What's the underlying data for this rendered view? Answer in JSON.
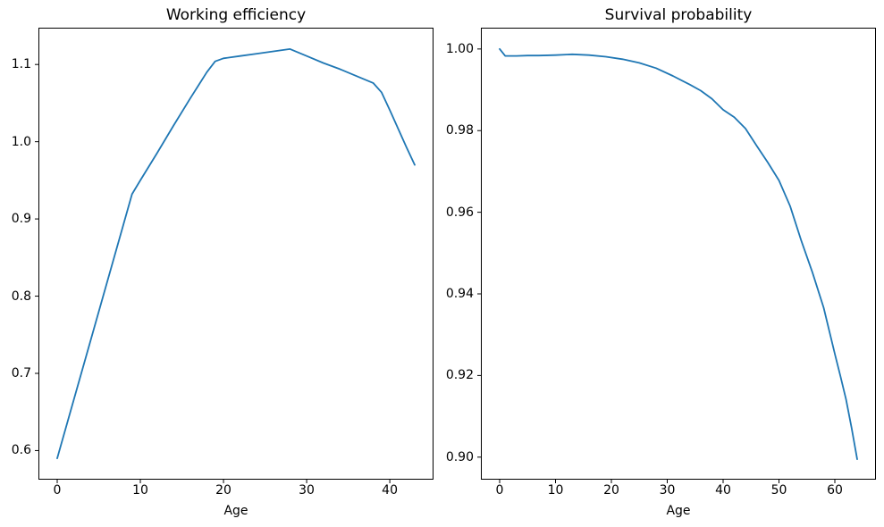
{
  "figure": {
    "background": "#ffffff",
    "text_color": "#000000",
    "spine_color": "#000000"
  },
  "chart_data": [
    {
      "type": "line",
      "title": "Working efficiency",
      "xlabel": "Age",
      "ylabel": "",
      "line_color": "#1f77b4",
      "grid": false,
      "legend": null,
      "xlim": [
        -2.15,
        45.15
      ],
      "ylim": [
        0.5635,
        1.1465
      ],
      "xticks": [
        0,
        10,
        20,
        30,
        40
      ],
      "xtick_labels": [
        "0",
        "10",
        "20",
        "30",
        "40"
      ],
      "yticks": [
        0.6,
        0.7,
        0.8,
        0.9,
        1.0,
        1.1
      ],
      "ytick_labels": [
        "0.6",
        "0.7",
        "0.8",
        "0.9",
        "1.0",
        "1.1"
      ],
      "x": [
        0,
        2,
        4,
        6,
        8,
        9,
        10,
        12,
        14,
        16,
        17,
        18,
        19,
        20,
        22,
        24,
        26,
        28,
        30,
        32,
        34,
        36,
        38,
        39,
        40,
        41,
        42,
        43
      ],
      "y": [
        0.59,
        0.666,
        0.742,
        0.818,
        0.894,
        0.932,
        0.95,
        0.985,
        1.021,
        1.056,
        1.073,
        1.09,
        1.104,
        1.108,
        1.111,
        1.114,
        1.117,
        1.12,
        1.111,
        1.102,
        1.094,
        1.085,
        1.076,
        1.064,
        1.041,
        1.017,
        0.993,
        0.97
      ]
    },
    {
      "type": "line",
      "title": "Survival probability",
      "xlabel": "Age",
      "ylabel": "",
      "line_color": "#1f77b4",
      "grid": false,
      "legend": null,
      "xlim": [
        -3.2,
        67.2
      ],
      "ylim": [
        0.8947,
        1.005
      ],
      "xticks": [
        0,
        10,
        20,
        30,
        40,
        50,
        60
      ],
      "xtick_labels": [
        "0",
        "10",
        "20",
        "30",
        "40",
        "50",
        "60"
      ],
      "yticks": [
        0.9,
        0.92,
        0.94,
        0.96,
        0.98,
        1.0
      ],
      "ytick_labels": [
        "0.90",
        "0.92",
        "0.94",
        "0.96",
        "0.98",
        "1.00"
      ],
      "x": [
        0,
        1,
        3,
        5,
        7,
        10,
        13,
        16,
        19,
        22,
        25,
        28,
        31,
        34,
        36,
        38,
        40,
        42,
        44,
        46,
        48,
        50,
        52,
        54,
        56,
        58,
        60,
        61,
        62,
        63,
        64
      ],
      "y": [
        1.0,
        0.9983,
        0.9983,
        0.9984,
        0.9984,
        0.9985,
        0.9987,
        0.9985,
        0.9981,
        0.9975,
        0.9966,
        0.9953,
        0.9934,
        0.9913,
        0.9898,
        0.9878,
        0.9851,
        0.9833,
        0.9805,
        0.9763,
        0.9722,
        0.9678,
        0.9615,
        0.953,
        0.9452,
        0.9366,
        0.9253,
        0.9198,
        0.9142,
        0.9071,
        0.8995
      ]
    }
  ]
}
